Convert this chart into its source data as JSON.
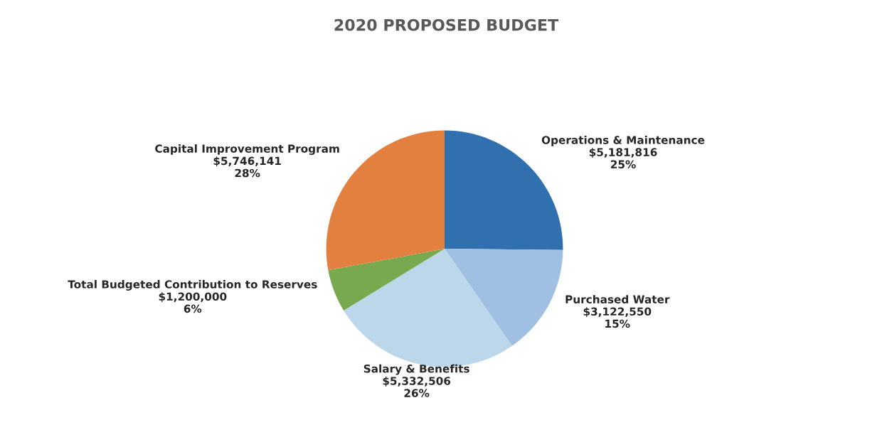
{
  "chart_data": {
    "type": "pie",
    "title": "2020 PROPOSED BUDGET",
    "categories": [
      "Operations & Maintenance",
      "Purchased Water",
      "Salary & Benefits",
      "Total Budgeted Contribution to Reserves",
      "Capital Improvement Program"
    ],
    "values": [
      5181816,
      3122550,
      5332506,
      1200000,
      5746141
    ],
    "value_labels": [
      "$5,181,816\n25%",
      "$3,122,550\n15%",
      "$5,332,506\n26%",
      "$1,200,000\n6%",
      "$5,746,141\n28%"
    ],
    "colors": [
      "#3070ae",
      "#9fc0e2",
      "#bcd6ea",
      "#78a94e",
      "#e37f3f"
    ]
  }
}
